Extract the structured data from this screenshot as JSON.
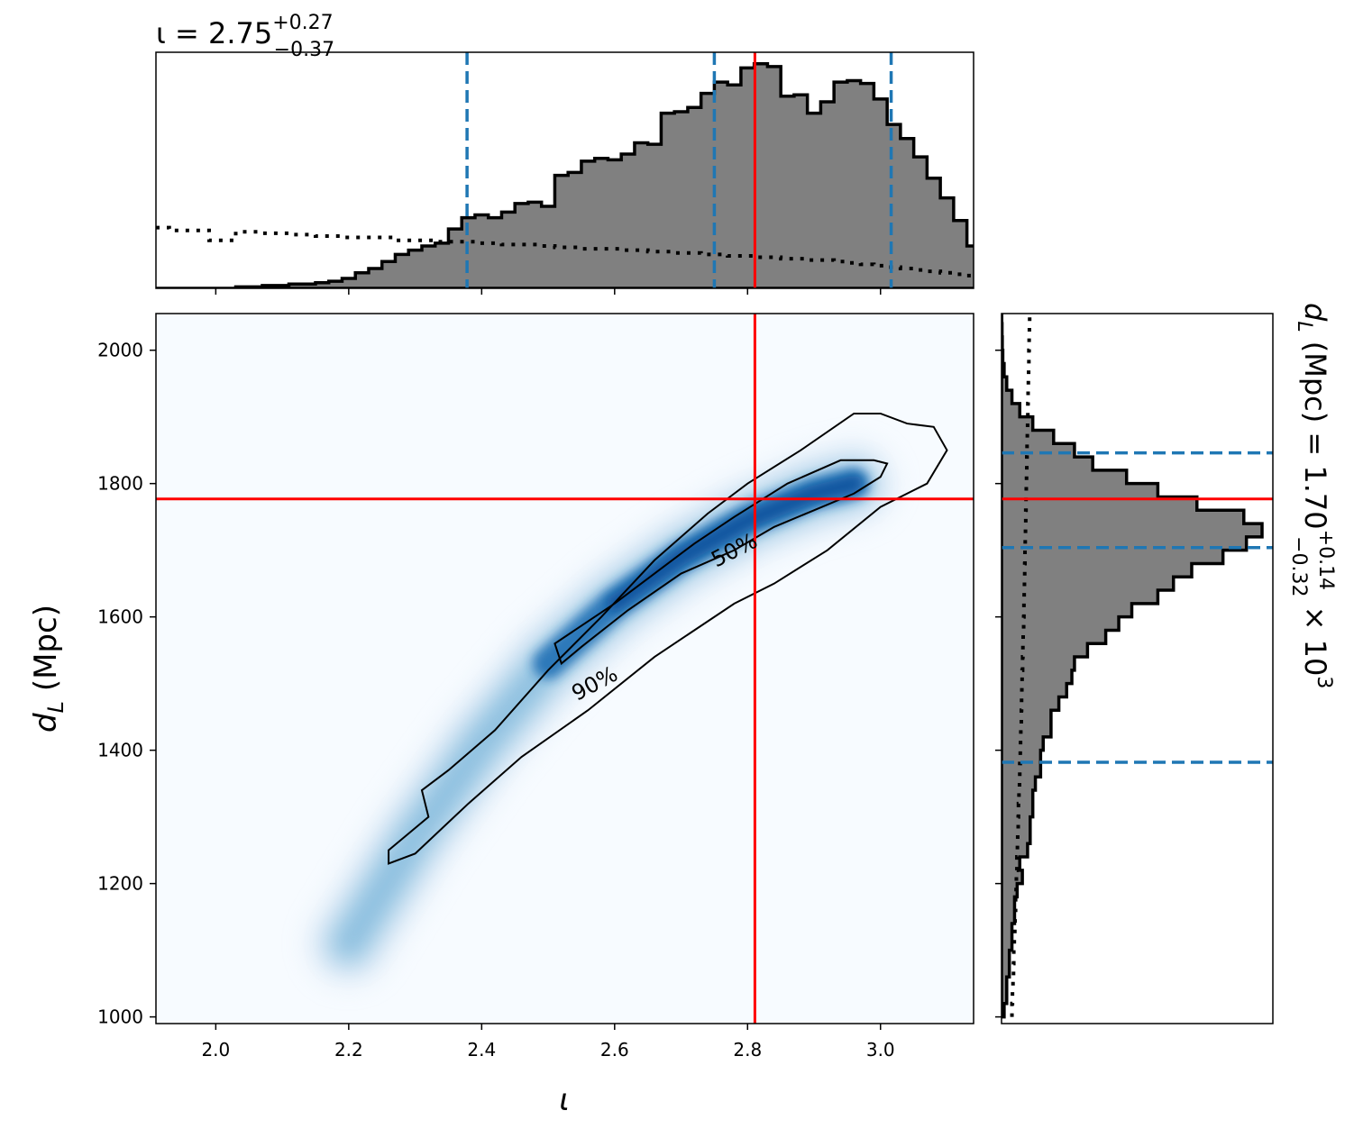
{
  "chart_data": {
    "type": "corner",
    "marginal_x": {
      "title_base": "ι = 2.75",
      "title_sup": "+0.27",
      "title_sub": "−0.37",
      "param": "ι",
      "xlim": [
        1.91,
        3.14
      ],
      "quantile_lines": [
        2.378,
        2.75,
        3.016
      ],
      "truth": 2.811,
      "bin_start": 1.91,
      "bin_width": 0.02,
      "posterior_density": [
        0,
        0,
        0,
        0,
        0,
        0,
        0.01,
        0.01,
        0.02,
        0.02,
        0.03,
        0.03,
        0.04,
        0.05,
        0.07,
        0.11,
        0.14,
        0.19,
        0.24,
        0.27,
        0.3,
        0.32,
        0.42,
        0.5,
        0.52,
        0.5,
        0.54,
        0.6,
        0.61,
        0.58,
        0.8,
        0.82,
        0.9,
        0.92,
        0.91,
        0.95,
        1.03,
        1.02,
        1.24,
        1.25,
        1.28,
        1.38,
        1.46,
        1.44,
        1.56,
        1.59,
        1.57,
        1.36,
        1.37,
        1.24,
        1.32,
        1.46,
        1.47,
        1.45,
        1.34,
        1.16,
        1.06,
        0.93,
        0.78,
        0.64,
        0.48,
        0.3
      ],
      "prior_density": [
        0.43,
        0.41,
        0.41,
        0.41,
        0.34,
        0.34,
        0.4,
        0.4,
        0.39,
        0.39,
        0.38,
        0.38,
        0.37,
        0.37,
        0.36,
        0.36,
        0.36,
        0.36,
        0.34,
        0.34,
        0.34,
        0.33,
        0.33,
        0.33,
        0.32,
        0.32,
        0.31,
        0.31,
        0.31,
        0.3,
        0.29,
        0.29,
        0.28,
        0.28,
        0.28,
        0.27,
        0.27,
        0.26,
        0.26,
        0.25,
        0.25,
        0.24,
        0.24,
        0.23,
        0.23,
        0.22,
        0.22,
        0.21,
        0.21,
        0.2,
        0.2,
        0.19,
        0.18,
        0.17,
        0.16,
        0.15,
        0.14,
        0.13,
        0.12,
        0.11,
        0.1,
        0.09
      ]
    },
    "joint": {
      "xlabel": "ι",
      "ylabel": "d",
      "ylabel_sub": "L",
      "ylabel_rest": " (Mpc)",
      "xlim": [
        1.91,
        3.14
      ],
      "ylim": [
        990,
        2055
      ],
      "xticks": [
        "2.0",
        "2.2",
        "2.4",
        "2.6",
        "2.8",
        "3.0"
      ],
      "yticks": [
        "1000",
        "1200",
        "1400",
        "1600",
        "1800",
        "2000"
      ],
      "truth": {
        "x": 2.811,
        "y": 1777
      },
      "colormap": "Blues",
      "density_ridge": [
        [
          2.2,
          1110
        ],
        [
          2.3,
          1270
        ],
        [
          2.4,
          1410
        ],
        [
          2.5,
          1530
        ],
        [
          2.6,
          1620
        ],
        [
          2.7,
          1690
        ],
        [
          2.8,
          1745
        ],
        [
          2.9,
          1785
        ],
        [
          2.96,
          1800
        ]
      ],
      "contours": [
        {
          "label": "50%",
          "label_at": [
            2.78,
            1700
          ],
          "label_rotation": -27,
          "path": [
            [
              2.52,
              1530
            ],
            [
              2.51,
              1560
            ],
            [
              2.54,
              1580
            ],
            [
              2.6,
              1620
            ],
            [
              2.66,
              1665
            ],
            [
              2.72,
              1710
            ],
            [
              2.78,
              1750
            ],
            [
              2.86,
              1800
            ],
            [
              2.94,
              1835
            ],
            [
              2.99,
              1835
            ],
            [
              3.01,
              1830
            ],
            [
              3.0,
              1810
            ],
            [
              2.96,
              1785
            ],
            [
              2.9,
              1760
            ],
            [
              2.84,
              1735
            ],
            [
              2.78,
              1700
            ],
            [
              2.7,
              1665
            ],
            [
              2.62,
              1610
            ],
            [
              2.55,
              1555
            ],
            [
              2.52,
              1530
            ]
          ]
        },
        {
          "label": "90%",
          "label_at": [
            2.57,
            1500
          ],
          "label_rotation": -28,
          "path": [
            [
              2.26,
              1230
            ],
            [
              2.26,
              1250
            ],
            [
              2.29,
              1275
            ],
            [
              2.32,
              1300
            ],
            [
              2.31,
              1340
            ],
            [
              2.35,
              1370
            ],
            [
              2.42,
              1430
            ],
            [
              2.5,
              1520
            ],
            [
              2.58,
              1600
            ],
            [
              2.66,
              1685
            ],
            [
              2.74,
              1755
            ],
            [
              2.8,
              1800
            ],
            [
              2.88,
              1850
            ],
            [
              2.96,
              1905
            ],
            [
              3.0,
              1905
            ],
            [
              3.04,
              1890
            ],
            [
              3.08,
              1885
            ],
            [
              3.1,
              1850
            ],
            [
              3.07,
              1800
            ],
            [
              3.0,
              1765
            ],
            [
              2.92,
              1700
            ],
            [
              2.84,
              1650
            ],
            [
              2.78,
              1620
            ],
            [
              2.66,
              1540
            ],
            [
              2.56,
              1460
            ],
            [
              2.46,
              1390
            ],
            [
              2.38,
              1320
            ],
            [
              2.3,
              1245
            ],
            [
              2.26,
              1230
            ]
          ]
        }
      ]
    },
    "marginal_y": {
      "title_base": "d",
      "title_sub_L": "L",
      "title_mid": " (Mpc) = 1.70",
      "title_sup": "+0.14",
      "title_sub": "−0.32",
      "title_tail": " × 10",
      "title_exp": "3",
      "ylim": [
        990,
        2055
      ],
      "yticks": [
        1000,
        1200,
        1400,
        1600,
        1800,
        2000
      ],
      "quantile_lines": [
        1382,
        1704,
        1846
      ],
      "truth": 1777,
      "bin_start": 1000,
      "bin_width": 20,
      "posterior_density": [
        0.01,
        0.02,
        0.02,
        0.03,
        0.03,
        0.04,
        0.04,
        0.05,
        0.05,
        0.06,
        0.08,
        0.07,
        0.1,
        0.11,
        0.11,
        0.12,
        0.12,
        0.13,
        0.15,
        0.15,
        0.16,
        0.19,
        0.19,
        0.22,
        0.25,
        0.27,
        0.28,
        0.33,
        0.4,
        0.45,
        0.5,
        0.6,
        0.66,
        0.73,
        0.85,
        0.94,
        1.0,
        0.93,
        0.75,
        0.6,
        0.48,
        0.35,
        0.28,
        0.2,
        0.12,
        0.07,
        0.04,
        0.02,
        0.01,
        0.005,
        0.003,
        0.002,
        0.001
      ],
      "prior_density": [
        0.04,
        0.042,
        0.044,
        0.046,
        0.047,
        0.049,
        0.051,
        0.052,
        0.054,
        0.056,
        0.057,
        0.059,
        0.061,
        0.062,
        0.064,
        0.065,
        0.067,
        0.069,
        0.07,
        0.072,
        0.073,
        0.074,
        0.076,
        0.077,
        0.078,
        0.079,
        0.081,
        0.082,
        0.083,
        0.085,
        0.086,
        0.087,
        0.088,
        0.089,
        0.09,
        0.091,
        0.092,
        0.093,
        0.094,
        0.095,
        0.096,
        0.097,
        0.098,
        0.099,
        0.1,
        0.101,
        0.102,
        0.103,
        0.104,
        0.105,
        0.106,
        0.107,
        0.108
      ]
    },
    "colors": {
      "posterior_fill": "#808080",
      "posterior_edge": "#000000",
      "quantile": "#1f77b4",
      "truth": "#ff0000",
      "contour": "#000000",
      "density_low": "#f7fbff",
      "density_high": "#08306b"
    }
  }
}
